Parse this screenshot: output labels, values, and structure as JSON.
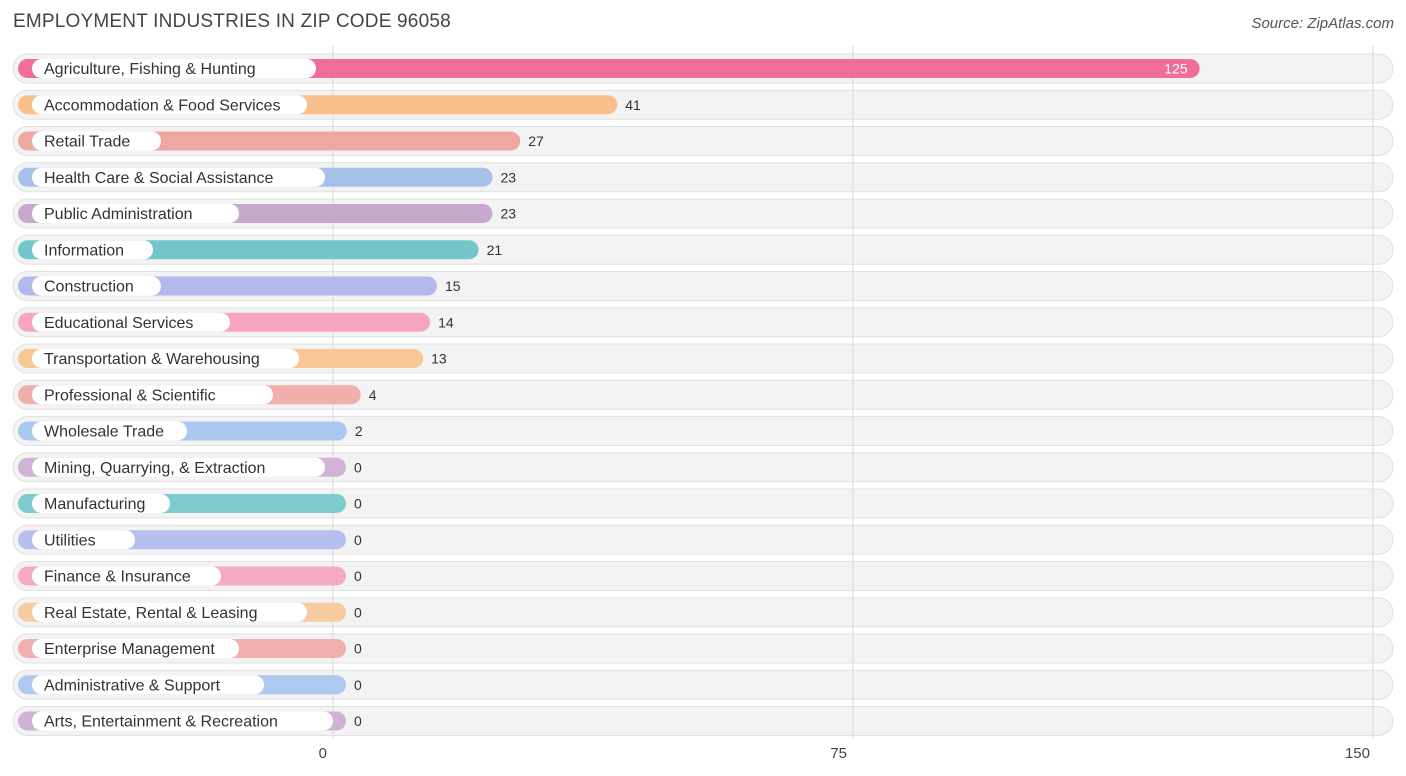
{
  "header": {
    "title": "EMPLOYMENT INDUSTRIES IN ZIP CODE 96058",
    "source": "Source: ZipAtlas.com"
  },
  "chart_data": {
    "type": "bar",
    "orientation": "horizontal",
    "title": "EMPLOYMENT INDUSTRIES IN ZIP CODE 96058",
    "xlabel": "",
    "ylabel": "",
    "xlim": [
      0,
      150
    ],
    "xticks": [
      0,
      75,
      150
    ],
    "grid": true,
    "categories": [
      "Agriculture, Fishing & Hunting",
      "Accommodation & Food Services",
      "Retail Trade",
      "Health Care & Social Assistance",
      "Public Administration",
      "Information",
      "Construction",
      "Educational Services",
      "Transportation & Warehousing",
      "Professional & Scientific",
      "Wholesale Trade",
      "Mining, Quarrying, & Extraction",
      "Manufacturing",
      "Utilities",
      "Finance & Insurance",
      "Real Estate, Rental & Leasing",
      "Enterprise Management",
      "Administrative & Support",
      "Arts, Entertainment & Recreation"
    ],
    "values": [
      125,
      41,
      27,
      23,
      23,
      21,
      15,
      14,
      13,
      4,
      2,
      0,
      0,
      0,
      0,
      0,
      0,
      0,
      0
    ],
    "colors": [
      "#f06e98",
      "#f9c08d",
      "#eea7a3",
      "#a5c1ea",
      "#c7a9ce",
      "#73c7ca",
      "#b4b9ec",
      "#f5a5c0",
      "#f9c795",
      "#f0afac",
      "#abc8ee",
      "#d0b3d6",
      "#7ecbcf",
      "#b7bff0",
      "#f6a9c4",
      "#f9cba0",
      "#f0b0ad",
      "#aec9ef",
      "#ceb3d5"
    ]
  }
}
